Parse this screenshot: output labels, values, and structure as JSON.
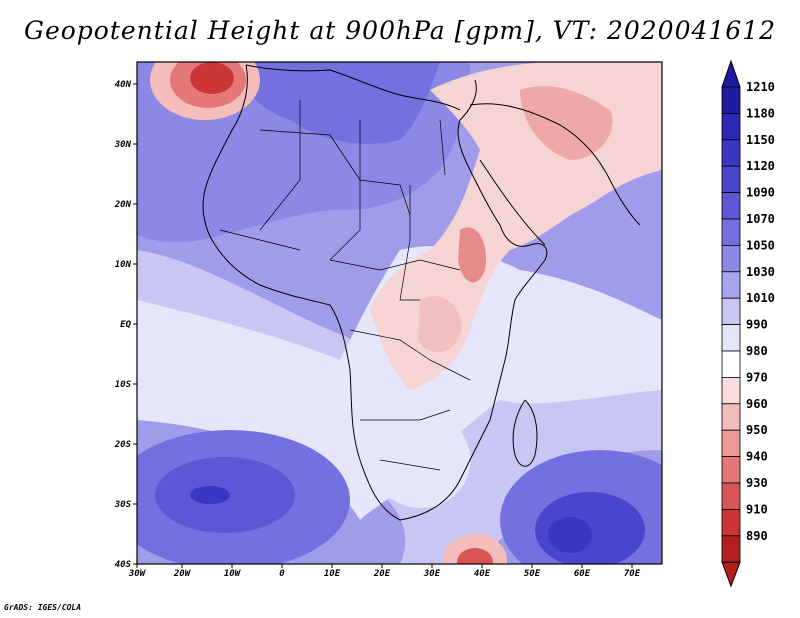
{
  "title": "Geopotential Height at 900hPa [gpm], VT: 2020041612",
  "credit": "GrADS: IGES/COLA",
  "map": {
    "region": "Africa",
    "lat_labels": [
      "40N",
      "30N",
      "20N",
      "10N",
      "EQ",
      "10S",
      "20S",
      "30S",
      "40S"
    ],
    "lon_labels": [
      "30W",
      "20W",
      "10W",
      "0",
      "10E",
      "20E",
      "30E",
      "40E",
      "50E",
      "60E",
      "70E"
    ]
  },
  "colorbar": {
    "levels": [
      "1210",
      "1180",
      "1150",
      "1120",
      "1090",
      "1070",
      "1050",
      "1030",
      "1010",
      "990",
      "980",
      "970",
      "960",
      "950",
      "940",
      "930",
      "910",
      "890"
    ],
    "colors": [
      "#1f1aa0",
      "#2d27b5",
      "#3b36c4",
      "#4a45cd",
      "#5d57d6",
      "#7470df",
      "#8b88e6",
      "#a7a5ee",
      "#c8c7f4",
      "#e6e6fa",
      "#ffffff",
      "#fadcdc",
      "#f5bcbc",
      "#ee9a9a",
      "#e47878",
      "#d95555",
      "#cc3535",
      "#b31f1f"
    ]
  },
  "colors": {
    "high": "#4b45cf",
    "mid_blue": "#7b77e0",
    "light_blue": "#c3c2f2",
    "neutral": "#ffffff",
    "light_red": "#f7c8c8",
    "red": "#d84545",
    "deep_red": "#b31f1f"
  }
}
